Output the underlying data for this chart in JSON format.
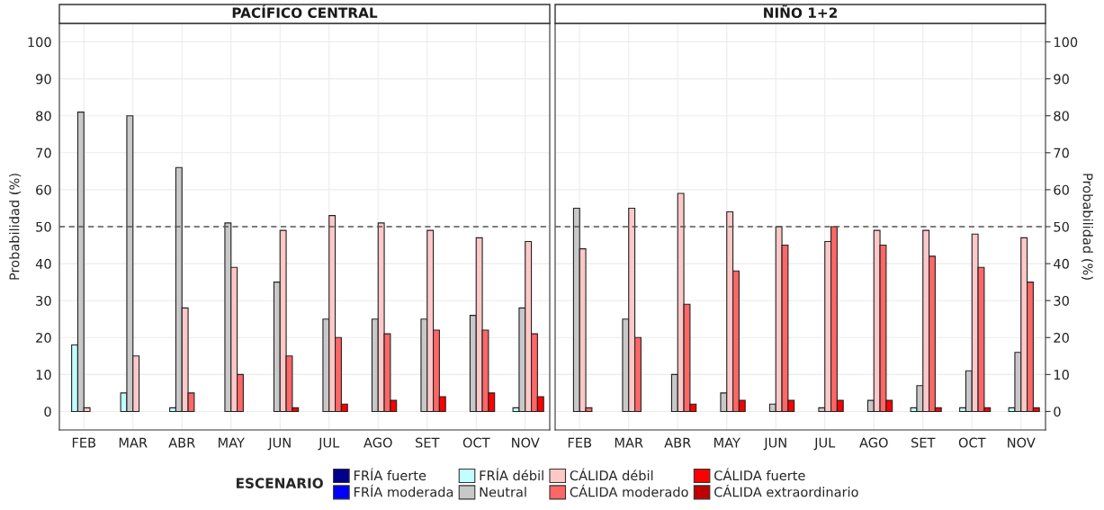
{
  "chart_data": [
    {
      "type": "bar",
      "title": "PACÍFICO CENTRAL",
      "ylabel": "Probabilidad (%)",
      "legend_title": "ESCENARIO",
      "legend": "bottom",
      "grid": true,
      "categories": [
        "FEB",
        "MAR",
        "ABR",
        "MAY",
        "JUN",
        "JUL",
        "AGO",
        "SET",
        "OCT",
        "NOV"
      ],
      "ylim": [
        -5,
        105
      ],
      "yticks": [
        0,
        10,
        20,
        30,
        40,
        50,
        60,
        70,
        80,
        90,
        100
      ],
      "ref_lines": [
        {
          "axis": "y",
          "value": 50,
          "line_style": "dashed",
          "color": "#555555"
        }
      ],
      "series": [
        {
          "name": "FRÍA fuerte",
          "color": "#00008b",
          "values": [
            null,
            null,
            null,
            null,
            null,
            null,
            null,
            null,
            null,
            null
          ]
        },
        {
          "name": "FRÍA moderada",
          "color": "#0000ff",
          "values": [
            null,
            null,
            null,
            null,
            null,
            null,
            null,
            null,
            null,
            null
          ]
        },
        {
          "name": "FRÍA débil",
          "color": "#c1ffff",
          "values": [
            18,
            5,
            1,
            null,
            null,
            null,
            null,
            null,
            null,
            1
          ]
        },
        {
          "name": "Neutral",
          "color": "#c8c8c8",
          "values": [
            81,
            80,
            66,
            51,
            35,
            25,
            25,
            25,
            26,
            28
          ]
        },
        {
          "name": "CÁLIDA débil",
          "color": "#ffc8c8",
          "values": [
            1,
            15,
            28,
            39,
            49,
            53,
            51,
            49,
            47,
            46
          ]
        },
        {
          "name": "CÁLIDA moderado",
          "color": "#ff6666",
          "values": [
            null,
            null,
            5,
            10,
            15,
            20,
            21,
            22,
            22,
            21
          ]
        },
        {
          "name": "CÁLIDA fuerte",
          "color": "#ff0000",
          "values": [
            null,
            null,
            null,
            null,
            1,
            2,
            3,
            4,
            5,
            4
          ]
        },
        {
          "name": "CÁLIDA extraordinario",
          "color": "#c00000",
          "values": [
            null,
            null,
            null,
            null,
            null,
            null,
            null,
            null,
            null,
            null
          ]
        }
      ]
    },
    {
      "type": "bar",
      "title": "NIÑO 1+2",
      "ylabel": "Probabilidad (%)",
      "grid": true,
      "categories": [
        "FEB",
        "MAR",
        "ABR",
        "MAY",
        "JUN",
        "JUL",
        "AGO",
        "SET",
        "OCT",
        "NOV"
      ],
      "ylim": [
        -5,
        105
      ],
      "yticks": [
        0,
        10,
        20,
        30,
        40,
        50,
        60,
        70,
        80,
        90,
        100
      ],
      "ref_lines": [
        {
          "axis": "y",
          "value": 50,
          "line_style": "dashed",
          "color": "#555555"
        }
      ],
      "series": [
        {
          "values": [
            null,
            null,
            null,
            null,
            null,
            null,
            null,
            null,
            null,
            null
          ]
        },
        {
          "values": [
            null,
            null,
            null,
            null,
            null,
            null,
            null,
            null,
            null,
            null
          ]
        },
        {
          "color": "#c1ffff",
          "values": [
            null,
            null,
            null,
            null,
            null,
            null,
            null,
            1,
            1,
            1
          ]
        },
        {
          "color": "#c8c8c8",
          "values": [
            55,
            25,
            10,
            5,
            2,
            1,
            3,
            7,
            11,
            16
          ]
        },
        {
          "color": "#ffc8c8",
          "values": [
            44,
            55,
            59,
            54,
            50,
            46,
            49,
            49,
            48,
            47
          ]
        },
        {
          "color": "#ff6666",
          "values": [
            1,
            20,
            29,
            38,
            45,
            50,
            45,
            42,
            39,
            35
          ]
        },
        {
          "color": "#ff0000",
          "values": [
            null,
            null,
            2,
            3,
            3,
            3,
            3,
            1,
            1,
            1
          ]
        },
        {
          "values": [
            null,
            null,
            null,
            null,
            null,
            null,
            null,
            null,
            null,
            null
          ]
        }
      ]
    }
  ]
}
